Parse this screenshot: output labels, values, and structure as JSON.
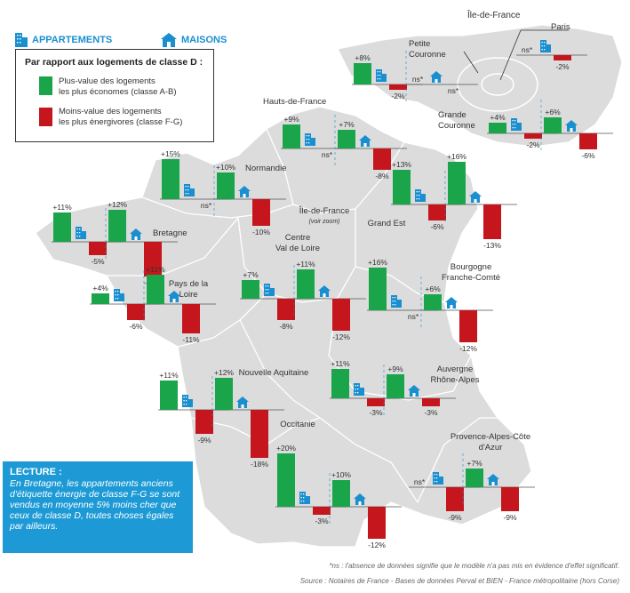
{
  "header": {
    "appartements_label": "APPARTEMENTS",
    "maisons_label": "MAISONS",
    "appartements_color": "#1a8fd0",
    "maisons_color": "#1a8fd0"
  },
  "legend": {
    "title": "Par rapport aux logements de classe D :",
    "items": [
      {
        "line1": "Plus-value des logements",
        "line2": "les plus économes (classe A-B)",
        "color": "#1aa54b"
      },
      {
        "line1": "Moins-value des logements",
        "line2": "les plus énergivores (classe F-G)",
        "color": "#c4161c"
      }
    ]
  },
  "reading": {
    "title": "LECTURE :",
    "line1": "En Bretagne, les appartements anciens",
    "line2": "d'étiquette énergie de classe F-G se sont",
    "line3": "vendus en moyenne 5% moins cher que",
    "line4": "ceux de classe D, toutes choses égales",
    "line5": "par ailleurs."
  },
  "footnotes": {
    "ns": "*ns : l'absence de données signifie que le modèle n'a pas mis en évidence d'effet significatif.",
    "source": "Source : Notaires de France - Bases de données Perval et BIEN - France métropolitaine (hors Corse)"
  },
  "map_labels": [
    {
      "id": "idf-inset",
      "lines": [
        "Île-de-France"
      ]
    },
    {
      "id": "paris",
      "lines": [
        "Paris"
      ]
    },
    {
      "id": "petite",
      "lines": [
        "Petite",
        "Couronne"
      ]
    },
    {
      "id": "grande",
      "lines": [
        "Grande",
        "Couronne"
      ]
    },
    {
      "id": "hdf",
      "lines": [
        "Hauts-de-France"
      ]
    },
    {
      "id": "normandie",
      "lines": [
        "Normandie"
      ]
    },
    {
      "id": "bretagne",
      "lines": [
        "Bretagne"
      ]
    },
    {
      "id": "idf-main",
      "lines": [
        "Île-de-France"
      ]
    },
    {
      "id": "idf-zoom",
      "lines": [
        "(voir zoom)"
      ]
    },
    {
      "id": "grandest",
      "lines": [
        "Grand Est"
      ]
    },
    {
      "id": "cvl",
      "lines": [
        "Centre",
        "Val de Loire"
      ]
    },
    {
      "id": "bfc",
      "lines": [
        "Bourgogne",
        "Franche-Comté"
      ]
    },
    {
      "id": "pdl",
      "lines": [
        "Pays de la",
        "Loire"
      ]
    },
    {
      "id": "naq",
      "lines": [
        "Nouvelle Aquitaine"
      ]
    },
    {
      "id": "ara",
      "lines": [
        "Auvergne",
        "Rhône-Alpes"
      ]
    },
    {
      "id": "occ",
      "lines": [
        "Occitanie"
      ]
    },
    {
      "id": "paca",
      "lines": [
        "Provence-Alpes-Côte",
        "d'Azur"
      ]
    }
  ],
  "chart_data": {
    "type": "bar",
    "unit": "%",
    "series": [
      {
        "name": "Plus-value des logements les plus économes (classe A-B)",
        "color": "#1aa54b"
      },
      {
        "name": "Moins-value des logements les plus énergivores (classe F-G)",
        "color": "#c4161c"
      }
    ],
    "regions": [
      {
        "region": "Paris",
        "appartements": {
          "ab": "ns*",
          "fg": -2
        }
      },
      {
        "region": "Petite Couronne",
        "appartements": {
          "ab": 8,
          "fg": -2
        },
        "maisons": {
          "ab": "ns*",
          "fg": "ns*"
        }
      },
      {
        "region": "Grande Couronne",
        "appartements": {
          "ab": 4,
          "fg": -2
        },
        "maisons": {
          "ab": 6,
          "fg": -6
        }
      },
      {
        "region": "Hauts-de-France",
        "appartements": {
          "ab": 9,
          "fg": "ns*"
        },
        "maisons": {
          "ab": 7,
          "fg": -8
        }
      },
      {
        "region": "Normandie",
        "appartements": {
          "ab": 15,
          "fg": "ns*"
        },
        "maisons": {
          "ab": 10,
          "fg": -10
        }
      },
      {
        "region": "Bretagne",
        "appartements": {
          "ab": 11,
          "fg": -5
        },
        "maisons": {
          "ab": 12,
          "fg": -13
        }
      },
      {
        "region": "Grand Est",
        "appartements": {
          "ab": 13,
          "fg": -6
        },
        "maisons": {
          "ab": 16,
          "fg": -13
        }
      },
      {
        "region": "Centre Val de Loire",
        "appartements": {
          "ab": 7,
          "fg": -8
        },
        "maisons": {
          "ab": 11,
          "fg": -12
        }
      },
      {
        "region": "Bourgogne Franche-Comté",
        "appartements": {
          "ab": 16,
          "fg": "ns*"
        },
        "maisons": {
          "ab": 6,
          "fg": -12
        }
      },
      {
        "region": "Pays de la Loire",
        "appartements": {
          "ab": 4,
          "fg": -6
        },
        "maisons": {
          "ab": 11,
          "fg": -11
        }
      },
      {
        "region": "Nouvelle Aquitaine",
        "appartements": {
          "ab": 11,
          "fg": -9
        },
        "maisons": {
          "ab": 12,
          "fg": -18
        }
      },
      {
        "region": "Auvergne Rhône-Alpes",
        "appartements": {
          "ab": 11,
          "fg": -3
        },
        "maisons": {
          "ab": 9,
          "fg": -3
        }
      },
      {
        "region": "Occitanie",
        "appartements": {
          "ab": 20,
          "fg": -3
        },
        "maisons": {
          "ab": 10,
          "fg": -12
        }
      },
      {
        "region": "Provence-Alpes-Côte d'Azur",
        "appartements": {
          "ab": "ns*",
          "fg": -9
        },
        "maisons": {
          "ab": 7,
          "fg": -9
        }
      }
    ]
  }
}
